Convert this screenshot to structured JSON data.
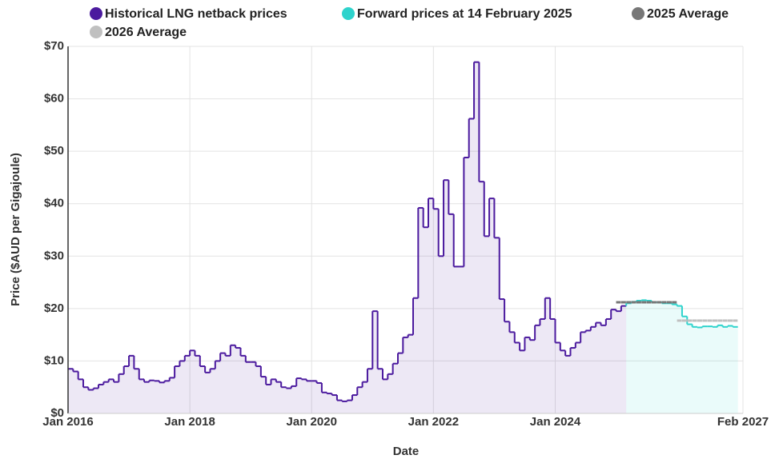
{
  "chart_data": {
    "type": "step-line",
    "x_label": "Date",
    "y_label": "Price ($AUD per Gigajoule)",
    "x": [
      "2016-01",
      "2016-02",
      "2016-03",
      "2016-04",
      "2016-05",
      "2016-06",
      "2016-07",
      "2016-08",
      "2016-09",
      "2016-10",
      "2016-11",
      "2016-12",
      "2017-01",
      "2017-02",
      "2017-03",
      "2017-04",
      "2017-05",
      "2017-06",
      "2017-07",
      "2017-08",
      "2017-09",
      "2017-10",
      "2017-11",
      "2017-12",
      "2018-01",
      "2018-02",
      "2018-03",
      "2018-04",
      "2018-05",
      "2018-06",
      "2018-07",
      "2018-08",
      "2018-09",
      "2018-10",
      "2018-11",
      "2018-12",
      "2019-01",
      "2019-02",
      "2019-03",
      "2019-04",
      "2019-05",
      "2019-06",
      "2019-07",
      "2019-08",
      "2019-09",
      "2019-10",
      "2019-11",
      "2019-12",
      "2020-01",
      "2020-02",
      "2020-03",
      "2020-04",
      "2020-05",
      "2020-06",
      "2020-07",
      "2020-08",
      "2020-09",
      "2020-10",
      "2020-11",
      "2020-12",
      "2021-01",
      "2021-02",
      "2021-03",
      "2021-04",
      "2021-05",
      "2021-06",
      "2021-07",
      "2021-08",
      "2021-09",
      "2021-10",
      "2021-11",
      "2021-12",
      "2022-01",
      "2022-02",
      "2022-03",
      "2022-04",
      "2022-05",
      "2022-06",
      "2022-07",
      "2022-08",
      "2022-09",
      "2022-10",
      "2022-11",
      "2022-12",
      "2023-01",
      "2023-02",
      "2023-03",
      "2023-04",
      "2023-05",
      "2023-06",
      "2023-07",
      "2023-08",
      "2023-09",
      "2023-10",
      "2023-11",
      "2023-12",
      "2024-01",
      "2024-02",
      "2024-03",
      "2024-04",
      "2024-05",
      "2024-06",
      "2024-07",
      "2024-08",
      "2024-09",
      "2024-10",
      "2024-11",
      "2024-12",
      "2025-01",
      "2025-02",
      "2025-03",
      "2025-04",
      "2025-05",
      "2025-06",
      "2025-07",
      "2025-08",
      "2025-09",
      "2025-10",
      "2025-11",
      "2025-12",
      "2026-01",
      "2026-02",
      "2026-03",
      "2026-04",
      "2026-05",
      "2026-06",
      "2026-07",
      "2026-08",
      "2026-09",
      "2026-10",
      "2026-11",
      "2026-12"
    ],
    "series": [
      {
        "name": "Historical LNG netback prices",
        "color": "#4b1a9e",
        "fill": true,
        "values": [
          8.5,
          8,
          6.5,
          5,
          4.5,
          4.8,
          5.5,
          6,
          6.5,
          6,
          7.5,
          9,
          11,
          8.5,
          6.5,
          6,
          6.3,
          6.2,
          5.9,
          6.2,
          6.8,
          9,
          10,
          11,
          12,
          11,
          9,
          7.8,
          8.5,
          10,
          11.5,
          11,
          13,
          12.5,
          11,
          9.8,
          9.8,
          9,
          7,
          5.5,
          6.5,
          6,
          5,
          4.8,
          5.2,
          6.7,
          6.5,
          6.2,
          6.2,
          5.8,
          4,
          3.8,
          3.5,
          2.5,
          2.3,
          2.5,
          3.5,
          5,
          6,
          8.5,
          19.5,
          8.5,
          6.5,
          7.5,
          9.5,
          11.5,
          14.5,
          15,
          22,
          39.2,
          35.5,
          41,
          39,
          30,
          44.5,
          38,
          28,
          28,
          48.8,
          56.2,
          67,
          44.2,
          33.8,
          41,
          33.5,
          21.8,
          17.5,
          15.5,
          13.5,
          12,
          14.5,
          14,
          16.8,
          18,
          22,
          18,
          13.5,
          12,
          11,
          12.5,
          13.5,
          15.5,
          15.8,
          16.5,
          17.3,
          16.8,
          18,
          19.8,
          19.5,
          20.5,
          null,
          null,
          null,
          null,
          null,
          null,
          null,
          null,
          null,
          null,
          null,
          null,
          null,
          null,
          null,
          null,
          null,
          null,
          null,
          null,
          null,
          null
        ]
      },
      {
        "name": "Forward prices at 14 February 2025",
        "color": "#2ed3cc",
        "fill": true,
        "values": [
          null,
          null,
          null,
          null,
          null,
          null,
          null,
          null,
          null,
          null,
          null,
          null,
          null,
          null,
          null,
          null,
          null,
          null,
          null,
          null,
          null,
          null,
          null,
          null,
          null,
          null,
          null,
          null,
          null,
          null,
          null,
          null,
          null,
          null,
          null,
          null,
          null,
          null,
          null,
          null,
          null,
          null,
          null,
          null,
          null,
          null,
          null,
          null,
          null,
          null,
          null,
          null,
          null,
          null,
          null,
          null,
          null,
          null,
          null,
          null,
          null,
          null,
          null,
          null,
          null,
          null,
          null,
          null,
          null,
          null,
          null,
          null,
          null,
          null,
          null,
          null,
          null,
          null,
          null,
          null,
          null,
          null,
          null,
          null,
          null,
          null,
          null,
          null,
          null,
          null,
          null,
          null,
          null,
          null,
          null,
          null,
          null,
          null,
          null,
          null,
          null,
          null,
          null,
          null,
          null,
          null,
          null,
          null,
          null,
          null,
          21,
          21.3,
          21.5,
          21.6,
          21.5,
          21.2,
          21.2,
          21,
          21,
          20.8,
          20.5,
          18.5,
          17,
          16.5,
          16.4,
          16.6,
          16.6,
          16.5,
          16.8,
          16.5,
          16.7,
          16.5
        ]
      },
      {
        "name": "2025 Average",
        "color": "#777777",
        "dashed": true,
        "values": [
          null,
          null,
          null,
          null,
          null,
          null,
          null,
          null,
          null,
          null,
          null,
          null,
          null,
          null,
          null,
          null,
          null,
          null,
          null,
          null,
          null,
          null,
          null,
          null,
          null,
          null,
          null,
          null,
          null,
          null,
          null,
          null,
          null,
          null,
          null,
          null,
          null,
          null,
          null,
          null,
          null,
          null,
          null,
          null,
          null,
          null,
          null,
          null,
          null,
          null,
          null,
          null,
          null,
          null,
          null,
          null,
          null,
          null,
          null,
          null,
          null,
          null,
          null,
          null,
          null,
          null,
          null,
          null,
          null,
          null,
          null,
          null,
          null,
          null,
          null,
          null,
          null,
          null,
          null,
          null,
          null,
          null,
          null,
          null,
          null,
          null,
          null,
          null,
          null,
          null,
          null,
          null,
          null,
          null,
          null,
          null,
          null,
          null,
          null,
          null,
          null,
          null,
          null,
          null,
          null,
          null,
          null,
          null,
          21.2,
          21.2,
          21.2,
          21.2,
          21.2,
          21.2,
          21.2,
          21.2,
          21.2,
          21.2,
          21.2,
          21.2,
          null,
          null,
          null,
          null,
          null,
          null,
          null,
          null,
          null,
          null,
          null,
          null
        ]
      },
      {
        "name": "2026 Average",
        "color": "#c0c0c0",
        "dashed": true,
        "values": [
          null,
          null,
          null,
          null,
          null,
          null,
          null,
          null,
          null,
          null,
          null,
          null,
          null,
          null,
          null,
          null,
          null,
          null,
          null,
          null,
          null,
          null,
          null,
          null,
          null,
          null,
          null,
          null,
          null,
          null,
          null,
          null,
          null,
          null,
          null,
          null,
          null,
          null,
          null,
          null,
          null,
          null,
          null,
          null,
          null,
          null,
          null,
          null,
          null,
          null,
          null,
          null,
          null,
          null,
          null,
          null,
          null,
          null,
          null,
          null,
          null,
          null,
          null,
          null,
          null,
          null,
          null,
          null,
          null,
          null,
          null,
          null,
          null,
          null,
          null,
          null,
          null,
          null,
          null,
          null,
          null,
          null,
          null,
          null,
          null,
          null,
          null,
          null,
          null,
          null,
          null,
          null,
          null,
          null,
          null,
          null,
          null,
          null,
          null,
          null,
          null,
          null,
          null,
          null,
          null,
          null,
          null,
          null,
          null,
          null,
          null,
          null,
          null,
          null,
          null,
          null,
          null,
          null,
          null,
          null,
          17.7,
          17.7,
          17.7,
          17.7,
          17.7,
          17.7,
          17.7,
          17.7,
          17.7,
          17.7,
          17.7,
          17.7
        ]
      }
    ],
    "xlim": [
      "2016-01",
      "2027-02"
    ],
    "xticks": [
      {
        "value": "2016-01",
        "label": "Jan 2016"
      },
      {
        "value": "2018-01",
        "label": "Jan 2018"
      },
      {
        "value": "2020-01",
        "label": "Jan 2020"
      },
      {
        "value": "2022-01",
        "label": "Jan 2022"
      },
      {
        "value": "2024-01",
        "label": "Jan 2024"
      },
      {
        "value": "2027-02",
        "label": "Feb 2027"
      }
    ],
    "ylim": [
      0,
      70
    ],
    "yticks": [
      {
        "value": 0,
        "label": "$0"
      },
      {
        "value": 10,
        "label": "$10"
      },
      {
        "value": 20,
        "label": "$20"
      },
      {
        "value": 30,
        "label": "$30"
      },
      {
        "value": 40,
        "label": "$40"
      },
      {
        "value": 50,
        "label": "$50"
      },
      {
        "value": 60,
        "label": "$60"
      },
      {
        "value": 70,
        "label": "$70"
      }
    ],
    "grid": true,
    "legend": "top"
  }
}
